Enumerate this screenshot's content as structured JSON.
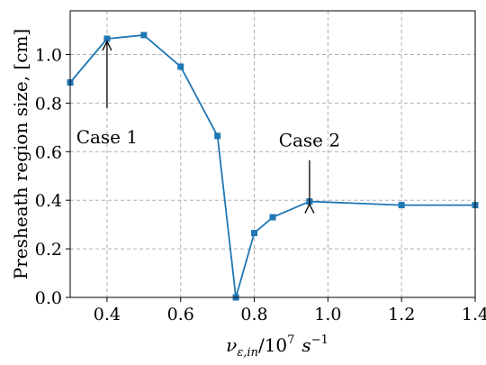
{
  "chart_data": {
    "type": "line",
    "xlabel_main": "ν",
    "xlabel_sub": "ε,in",
    "xlabel_rest": "/10",
    "xlabel_exp": "7",
    "xlabel_unit": "s",
    "xlabel_unit_exp": "−1",
    "ylabel": "Presheath region size, [cm]",
    "xlim": [
      0.3,
      1.4
    ],
    "ylim": [
      0.0,
      1.18
    ],
    "xticks": [
      0.4,
      0.6,
      0.8,
      1.0,
      1.2,
      1.4
    ],
    "xtick_labels": [
      "0.4",
      "0.6",
      "0.8",
      "1.0",
      "1.2",
      "1.4"
    ],
    "yticks": [
      0.0,
      0.2,
      0.4,
      0.6,
      0.8,
      1.0
    ],
    "ytick_labels": [
      "0.0",
      "0.2",
      "0.4",
      "0.6",
      "0.8",
      "1.0"
    ],
    "grid": true,
    "series": [
      {
        "color": "#1f77b4",
        "marker": "square",
        "x": [
          0.3,
          0.4,
          0.5,
          0.6,
          0.7,
          0.75,
          0.8,
          0.85,
          0.95,
          1.2,
          1.4
        ],
        "y": [
          0.885,
          1.065,
          1.08,
          0.95,
          0.665,
          0.0,
          0.265,
          0.33,
          0.395,
          0.38,
          0.38
        ]
      }
    ],
    "annotations": [
      {
        "text": "Case 1",
        "x": 0.4,
        "y": 1.065
      },
      {
        "text": "Case 2",
        "x": 0.95,
        "y": 0.395
      }
    ]
  }
}
